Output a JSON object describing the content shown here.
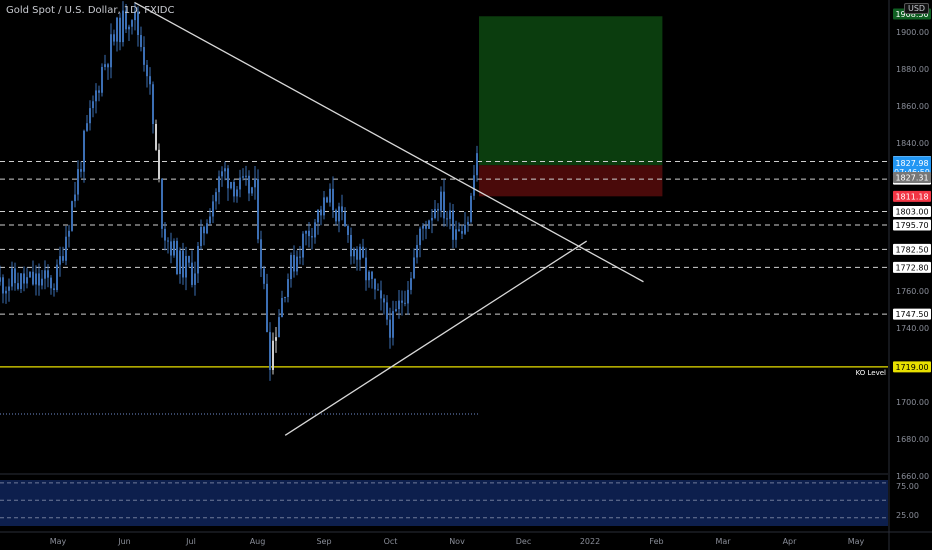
{
  "header": {
    "title": "Gold Spot / U.S. Dollar, 1D, FXIDC",
    "currency_badge": "USD"
  },
  "colors": {
    "background": "#000000",
    "candle": "#3c6fb4",
    "candle_highlight": "#d0d0d0",
    "trendline": "#d8d8d8",
    "ko_line": "#e8e000",
    "profit_zone": "#0b3d0e",
    "loss_zone": "#4a0a0a",
    "indicator_bg": "#0d1f4d",
    "price_label_bg": "#ffffff",
    "last_price_bg": "#2196f3",
    "stop_price_bg": "#f23645",
    "prev_price_bg": "#777777"
  },
  "chart_data": {
    "type": "line",
    "title": "Gold Spot / U.S. Dollar, 1D, FXIDC",
    "xlabel": "",
    "ylabel": "",
    "x_tick_labels": [
      "May",
      "Jun",
      "Jul",
      "Aug",
      "Sep",
      "Oct",
      "Nov",
      "Dec",
      "2022",
      "Feb",
      "Mar",
      "Apr",
      "May"
    ],
    "y_tick_labels": [
      "1900.00",
      "1880.00",
      "1860.00",
      "1840.00",
      "1760.00",
      "1740.00",
      "1700.00",
      "1680.00",
      "1660.00"
    ],
    "ylim": [
      1660,
      1918
    ],
    "grid": false,
    "series": [
      {
        "name": "",
        "x": [
          "2021-04-26",
          "2021-05-03",
          "2021-05-10",
          "2021-05-17",
          "2021-05-24",
          "2021-05-31",
          "2021-06-07",
          "2021-06-14",
          "2021-06-21",
          "2021-06-28",
          "2021-07-05",
          "2021-07-12",
          "2021-07-19",
          "2021-07-26",
          "2021-08-02",
          "2021-08-09",
          "2021-08-16",
          "2021-08-23",
          "2021-08-30",
          "2021-09-06",
          "2021-09-13",
          "2021-09-20",
          "2021-09-27",
          "2021-10-04",
          "2021-10-11",
          "2021-10-18",
          "2021-10-25",
          "2021-11-01",
          "2021-11-08"
        ],
        "values": [
          1765,
          1805,
          1845,
          1880,
          1900,
          1912,
          1880,
          1795,
          1775,
          1770,
          1805,
          1825,
          1815,
          1815,
          1725,
          1765,
          1785,
          1800,
          1810,
          1790,
          1775,
          1755,
          1740,
          1765,
          1795,
          1810,
          1795,
          1800,
          1865
        ]
      }
    ],
    "trendlines": [
      {
        "name": "",
        "from": {
          "x": "2021-06-01",
          "y": 1916
        },
        "to": {
          "x": "2022-01-20",
          "y": 1765
        }
      },
      {
        "name": "",
        "from": {
          "x": "2021-08-09",
          "y": 1682
        },
        "to": {
          "x": "2021-12-25",
          "y": 1787
        }
      }
    ],
    "horizontal_levels": [
      {
        "value": 1830.0,
        "label": "1830.00",
        "style": "dashed"
      },
      {
        "value": 1820.5,
        "label": "1820.50",
        "style": "dashed"
      },
      {
        "value": 1803.0,
        "label": "1803.00",
        "style": "dashed"
      },
      {
        "value": 1795.7,
        "label": "1795.70",
        "style": "dashed"
      },
      {
        "value": 1782.5,
        "label": "1782.50",
        "style": "dashed"
      },
      {
        "value": 1772.8,
        "label": "1772.80",
        "style": "dashed"
      },
      {
        "value": 1747.5,
        "label": "1747.50",
        "style": "dashed"
      },
      {
        "value": 1719.0,
        "label": "1719.00",
        "style": "solid",
        "annotation": "KO Level"
      }
    ],
    "price_markers": [
      {
        "value": 1827.98,
        "label": "1827.98",
        "countdown": "07:46:59",
        "kind": "last"
      },
      {
        "value": 1827.31,
        "label": "1827.31",
        "kind": "prev"
      },
      {
        "value": 1811.18,
        "label": "1811.18",
        "kind": "stop"
      }
    ],
    "position_box": {
      "entry": 1827.98,
      "target": 1908.5,
      "stop": 1811.18,
      "from": "2021-11-08",
      "to": "2022-01-25"
    },
    "indicator": {
      "tick_labels": [
        "75.00",
        "25.00"
      ],
      "levels": [
        80,
        50,
        20
      ]
    }
  }
}
